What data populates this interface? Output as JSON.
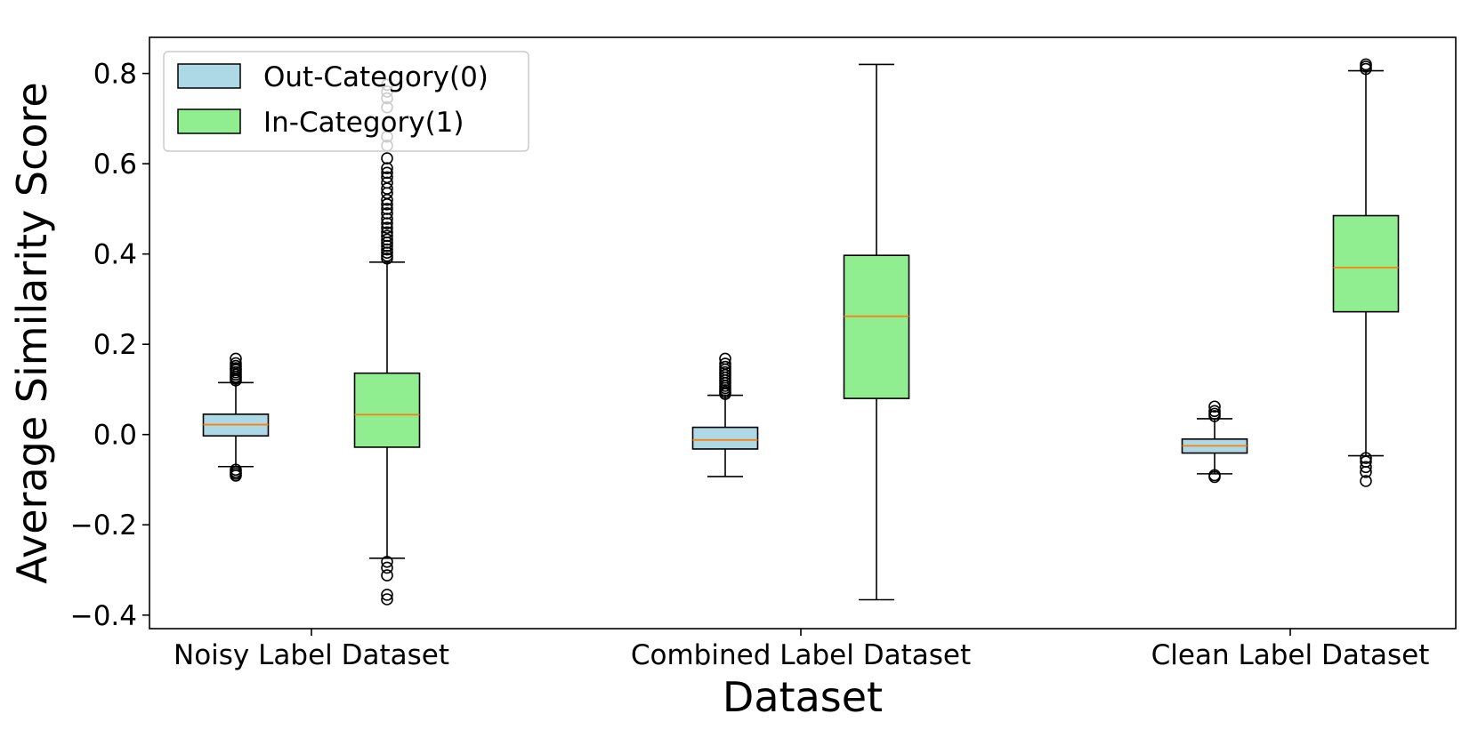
{
  "chart_data": {
    "type": "box",
    "xlabel": "Dataset",
    "ylabel": "Average Similarity Score",
    "ylim": [
      -0.43,
      0.88
    ],
    "yticks": [
      0.8,
      0.6,
      0.4,
      0.2,
      0.0,
      -0.2,
      -0.4
    ],
    "ytick_labels": [
      "0.8",
      "0.6",
      "0.4",
      "0.2",
      "0.0",
      "−0.2",
      "−0.4"
    ],
    "categories": [
      "Noisy Label Dataset",
      "Combined Label Dataset",
      "Clean Label Dataset"
    ],
    "grid": false,
    "legend_position": "upper-left",
    "median_color": "#ff7f0e",
    "series": [
      {
        "name": "Out-Category(0)",
        "color": "#add8e6",
        "boxes": [
          {
            "q1": -0.003,
            "median": 0.022,
            "q3": 0.045,
            "whislo": -0.071,
            "whishi": 0.115,
            "fliers": [
              0.168,
              0.158,
              0.152,
              0.147,
              0.143,
              0.138,
              0.133,
              0.128,
              0.124,
              0.12,
              -0.078,
              -0.083,
              -0.087,
              -0.091
            ]
          },
          {
            "q1": -0.032,
            "median": -0.012,
            "q3": 0.016,
            "whislo": -0.093,
            "whishi": 0.087,
            "fliers": [
              0.168,
              0.157,
              0.15,
              0.144,
              0.138,
              0.132,
              0.126,
              0.12,
              0.114,
              0.108,
              0.103,
              0.098,
              0.094,
              0.09
            ]
          },
          {
            "q1": -0.041,
            "median": -0.025,
            "q3": -0.01,
            "whislo": -0.087,
            "whishi": 0.035,
            "fliers": [
              0.062,
              0.052,
              0.046,
              0.041,
              -0.09,
              -0.094
            ]
          }
        ]
      },
      {
        "name": "In-Category(1)",
        "color": "#90ee90",
        "boxes": [
          {
            "q1": -0.028,
            "median": 0.044,
            "q3": 0.136,
            "whislo": -0.274,
            "whishi": 0.382,
            "fliers": [
              0.775,
              0.76,
              0.745,
              0.725,
              0.66,
              0.64,
              0.612,
              0.59,
              0.58,
              0.57,
              0.558,
              0.545,
              0.535,
              0.52,
              0.51,
              0.5,
              0.49,
              0.478,
              0.468,
              0.458,
              0.448,
              0.44,
              0.432,
              0.425,
              0.418,
              0.41,
              0.403,
              0.396,
              0.39,
              -0.282,
              -0.295,
              -0.312,
              -0.355,
              -0.365
            ]
          },
          {
            "q1": 0.08,
            "median": 0.262,
            "q3": 0.397,
            "whislo": -0.366,
            "whishi": 0.82,
            "fliers": []
          },
          {
            "q1": 0.272,
            "median": 0.37,
            "q3": 0.485,
            "whislo": -0.047,
            "whishi": 0.806,
            "fliers": [
              0.82,
              0.815,
              0.81,
              -0.052,
              -0.06,
              -0.072,
              -0.083,
              -0.103
            ]
          }
        ]
      }
    ]
  }
}
